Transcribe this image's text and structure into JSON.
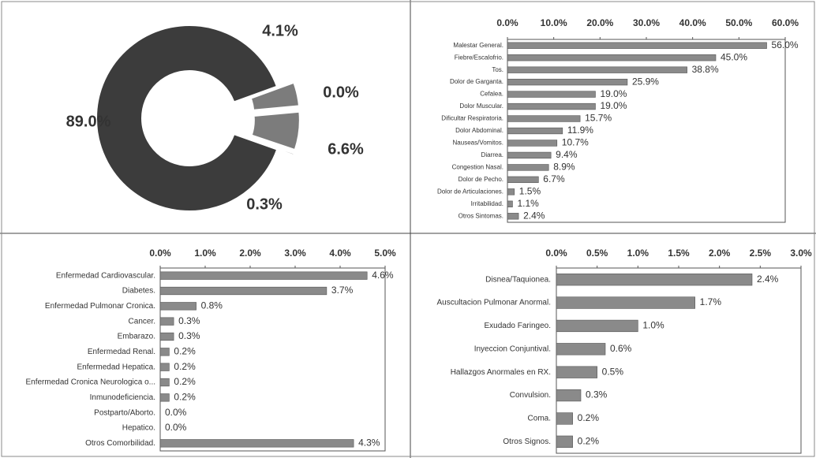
{
  "chart_data": [
    {
      "type": "pie",
      "donut": true,
      "values": [
        4.1,
        0.0,
        6.6,
        0.3,
        89.0
      ],
      "value_labels": [
        "4.1%",
        "0.0%",
        "6.6%",
        "0.3%",
        "89.0%"
      ],
      "colors": [
        "#7c7c7c",
        "#7c7c7c",
        "#7c7c7c",
        "#7c7c7c",
        "#3c3c3c"
      ]
    },
    {
      "type": "bar",
      "orientation": "horizontal",
      "color": "#8a8a8a",
      "categories": [
        "Malestar General.",
        "Fiebre/Escalofrio.",
        "Tos.",
        "Dolor de Garganta.",
        "Cefalea.",
        "Dolor Muscular.",
        "Dificultar Respiratoria.",
        "Dolor Abdominal.",
        "Nauseas/Vomitos.",
        "Diarrea.",
        "Congestion Nasal.",
        "Dolor de Pecho.",
        "Dolor de Articulaciones.",
        "Irritabilidad.",
        "Otros Sintomas."
      ],
      "values": [
        56.0,
        45.0,
        38.8,
        25.9,
        19.0,
        19.0,
        15.7,
        11.9,
        10.7,
        9.4,
        8.9,
        6.7,
        1.5,
        1.1,
        2.4
      ],
      "value_labels": [
        "56.0%",
        "45.0%",
        "38.8%",
        "25.9%",
        "19.0%",
        "19.0%",
        "15.7%",
        "11.9%",
        "10.7%",
        "9.4%",
        "8.9%",
        "6.7%",
        "1.5%",
        "1.1%",
        "2.4%"
      ],
      "xlim": [
        0,
        60
      ],
      "xticks": [
        {
          "value": 0,
          "label": "0.0%"
        },
        {
          "value": 10,
          "label": "10.0%"
        },
        {
          "value": 20,
          "label": "20.0%"
        },
        {
          "value": 30,
          "label": "30.0%"
        },
        {
          "value": 40,
          "label": "40.0%"
        },
        {
          "value": 50,
          "label": "50.0%"
        },
        {
          "value": 60,
          "label": "60.0%"
        }
      ]
    },
    {
      "type": "bar",
      "orientation": "horizontal",
      "color": "#8a8a8a",
      "categories": [
        "Enfermedad Cardiovascular.",
        "Diabetes.",
        "Enfermedad Pulmonar Cronica.",
        "Cancer.",
        "Embarazo.",
        "Enfermedad Renal.",
        "Enfermedad Hepatica.",
        "Enfermedad Cronica Neurologica o...",
        "Inmunodeficiencia.",
        "Postparto/Aborto.",
        "Hepatico.",
        "Otros Comorbilidad."
      ],
      "values": [
        4.6,
        3.7,
        0.8,
        0.3,
        0.3,
        0.2,
        0.2,
        0.2,
        0.2,
        0.0,
        0.0,
        4.3
      ],
      "value_labels": [
        "4.6%",
        "3.7%",
        "0.8%",
        "0.3%",
        "0.3%",
        "0.2%",
        "0.2%",
        "0.2%",
        "0.2%",
        "0.0%",
        "0.0%",
        "4.3%"
      ],
      "xlim": [
        0,
        5
      ],
      "xticks": [
        {
          "value": 0,
          "label": "0.0%"
        },
        {
          "value": 1,
          "label": "1.0%"
        },
        {
          "value": 2,
          "label": "2.0%"
        },
        {
          "value": 3,
          "label": "3.0%"
        },
        {
          "value": 4,
          "label": "4.0%"
        },
        {
          "value": 5,
          "label": "5.0%"
        }
      ]
    },
    {
      "type": "bar",
      "orientation": "horizontal",
      "color": "#8a8a8a",
      "categories": [
        "Disnea/Taquionea.",
        "Auscultacion Pulmonar Anormal.",
        "Exudado Faringeo.",
        "Inyeccion Conjuntival.",
        "Hallazgos Anormales en RX.",
        "Convulsion.",
        "Coma.",
        "Otros Signos."
      ],
      "values": [
        2.4,
        1.7,
        1.0,
        0.6,
        0.5,
        0.3,
        0.2,
        0.2
      ],
      "value_labels": [
        "2.4%",
        "1.7%",
        "1.0%",
        "0.6%",
        "0.5%",
        "0.3%",
        "0.2%",
        "0.2%"
      ],
      "xlim": [
        0,
        3
      ],
      "xticks": [
        {
          "value": 0,
          "label": "0.0%"
        },
        {
          "value": 0.5,
          "label": "0.5%"
        },
        {
          "value": 1,
          "label": "1.0%"
        },
        {
          "value": 1.5,
          "label": "1.5%"
        },
        {
          "value": 2,
          "label": "2.0%"
        },
        {
          "value": 2.5,
          "label": "2.5%"
        },
        {
          "value": 3,
          "label": "3.0%"
        }
      ]
    }
  ]
}
